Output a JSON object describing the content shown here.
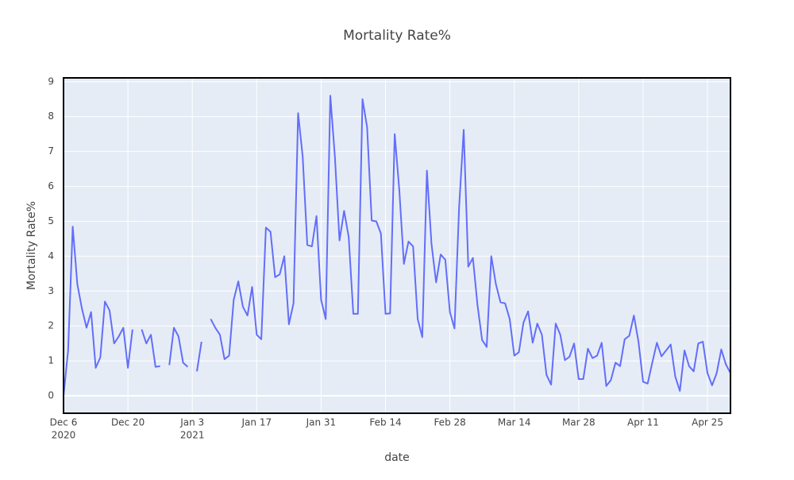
{
  "chart_data": {
    "type": "line",
    "title": "Mortality Rate%",
    "x_label": "date",
    "y_label": "Mortality Rate%",
    "x": [
      "2020-12-06",
      "2020-12-07",
      "2020-12-08",
      "2020-12-09",
      "2020-12-10",
      "2020-12-11",
      "2020-12-12",
      "2020-12-13",
      "2020-12-14",
      "2020-12-15",
      "2020-12-16",
      "2020-12-17",
      "2020-12-18",
      "2020-12-19",
      "2020-12-20",
      "2020-12-21",
      "2020-12-22",
      "2020-12-23",
      "2020-12-24",
      "2020-12-25",
      "2020-12-26",
      "2020-12-27",
      "2020-12-28",
      "2020-12-29",
      "2020-12-30",
      "2020-12-31",
      "2021-01-01",
      "2021-01-02",
      "2021-01-03",
      "2021-01-04",
      "2021-01-05",
      "2021-01-06",
      "2021-01-07",
      "2021-01-08",
      "2021-01-09",
      "2021-01-10",
      "2021-01-11",
      "2021-01-12",
      "2021-01-13",
      "2021-01-14",
      "2021-01-15",
      "2021-01-16",
      "2021-01-17",
      "2021-01-18",
      "2021-01-19",
      "2021-01-20",
      "2021-01-21",
      "2021-01-22",
      "2021-01-23",
      "2021-01-24",
      "2021-01-25",
      "2021-01-26",
      "2021-01-27",
      "2021-01-28",
      "2021-01-29",
      "2021-01-30",
      "2021-01-31",
      "2021-02-01",
      "2021-02-02",
      "2021-02-03",
      "2021-02-04",
      "2021-02-05",
      "2021-02-06",
      "2021-02-07",
      "2021-02-08",
      "2021-02-09",
      "2021-02-10",
      "2021-02-11",
      "2021-02-12",
      "2021-02-13",
      "2021-02-14",
      "2021-02-15",
      "2021-02-16",
      "2021-02-17",
      "2021-02-18",
      "2021-02-19",
      "2021-02-20",
      "2021-02-21",
      "2021-02-22",
      "2021-02-23",
      "2021-02-24",
      "2021-02-25",
      "2021-02-26",
      "2021-02-27",
      "2021-02-28",
      "2021-03-01",
      "2021-03-02",
      "2021-03-03",
      "2021-03-04",
      "2021-03-05",
      "2021-03-06",
      "2021-03-07",
      "2021-03-08",
      "2021-03-09",
      "2021-03-10",
      "2021-03-11",
      "2021-03-12",
      "2021-03-13",
      "2021-03-14",
      "2021-03-15",
      "2021-03-16",
      "2021-03-17",
      "2021-03-18",
      "2021-03-19",
      "2021-03-20",
      "2021-03-21",
      "2021-03-22",
      "2021-03-23",
      "2021-03-24",
      "2021-03-25",
      "2021-03-26",
      "2021-03-27",
      "2021-03-28",
      "2021-03-29",
      "2021-03-30",
      "2021-03-31",
      "2021-04-01",
      "2021-04-02",
      "2021-04-03",
      "2021-04-04",
      "2021-04-05",
      "2021-04-06",
      "2021-04-07",
      "2021-04-08",
      "2021-04-09",
      "2021-04-10",
      "2021-04-11",
      "2021-04-12",
      "2021-04-13",
      "2021-04-14",
      "2021-04-15",
      "2021-04-16",
      "2021-04-17",
      "2021-04-18",
      "2021-04-19",
      "2021-04-20",
      "2021-04-21",
      "2021-04-22",
      "2021-04-23",
      "2021-04-24",
      "2021-04-25",
      "2021-04-26",
      "2021-04-27",
      "2021-04-28",
      "2021-04-29",
      "2021-04-30"
    ],
    "series": [
      {
        "name": "Mortality Rate%",
        "color": "#636efa",
        "values": [
          0,
          1.3,
          4.85,
          3.2,
          2.5,
          1.95,
          2.4,
          0.8,
          1.1,
          2.7,
          2.45,
          1.5,
          1.7,
          1.95,
          0.8,
          1.9,
          null,
          1.9,
          1.5,
          1.75,
          0.83,
          0.85,
          null,
          0.88,
          1.95,
          1.7,
          0.95,
          0.83,
          null,
          0.7,
          1.55,
          null,
          2.2,
          1.95,
          1.75,
          1.05,
          1.15,
          2.75,
          3.28,
          2.55,
          2.3,
          3.12,
          1.75,
          1.62,
          4.82,
          4.7,
          3.4,
          3.48,
          4.0,
          2.05,
          2.65,
          8.1,
          6.85,
          4.32,
          4.28,
          5.15,
          2.75,
          2.2,
          8.6,
          6.85,
          4.45,
          5.3,
          4.55,
          2.35,
          2.35,
          8.5,
          7.7,
          5.02,
          5.0,
          4.65,
          2.35,
          2.36,
          7.5,
          5.9,
          3.78,
          4.42,
          4.28,
          2.2,
          1.68,
          6.45,
          4.35,
          3.25,
          4.05,
          3.9,
          2.4,
          1.93,
          5.4,
          7.62,
          3.7,
          3.95,
          2.6,
          1.6,
          1.4,
          4.0,
          3.2,
          2.68,
          2.65,
          2.2,
          1.15,
          1.25,
          2.1,
          2.42,
          1.52,
          2.07,
          1.75,
          0.6,
          0.32,
          2.07,
          1.75,
          1.02,
          1.12,
          1.5,
          0.48,
          0.48,
          1.35,
          1.08,
          1.15,
          1.52,
          0.28,
          0.45,
          0.95,
          0.85,
          1.62,
          1.72,
          2.3,
          1.55,
          0.4,
          0.35,
          0.95,
          1.52,
          1.13,
          1.3,
          1.47,
          0.55,
          0.14,
          1.3,
          0.85,
          0.7,
          1.5,
          1.55,
          0.65,
          0.3,
          0.65,
          1.33,
          0.9,
          0.65
        ]
      }
    ],
    "xlim": [
      "2020-12-06",
      "2021-04-30"
    ],
    "xticks": [
      {
        "value": "2020-12-06",
        "label": [
          "Dec 6",
          "2020"
        ]
      },
      {
        "value": "2020-12-20",
        "label": [
          "Dec 20"
        ]
      },
      {
        "value": "2021-01-03",
        "label": [
          "Jan 3",
          "2021"
        ]
      },
      {
        "value": "2021-01-17",
        "label": [
          "Jan 17"
        ]
      },
      {
        "value": "2021-01-31",
        "label": [
          "Jan 31"
        ]
      },
      {
        "value": "2021-02-14",
        "label": [
          "Feb 14"
        ]
      },
      {
        "value": "2021-02-28",
        "label": [
          "Feb 28"
        ]
      },
      {
        "value": "2021-03-14",
        "label": [
          "Mar 14"
        ]
      },
      {
        "value": "2021-03-28",
        "label": [
          "Mar 28"
        ]
      },
      {
        "value": "2021-04-11",
        "label": [
          "Apr 11"
        ]
      },
      {
        "value": "2021-04-25",
        "label": [
          "Apr 25"
        ]
      }
    ],
    "ylim": [
      -0.5,
      9.11
    ],
    "yticks": [
      0,
      1,
      2,
      3,
      4,
      5,
      6,
      7,
      8,
      9
    ],
    "grid": true
  }
}
